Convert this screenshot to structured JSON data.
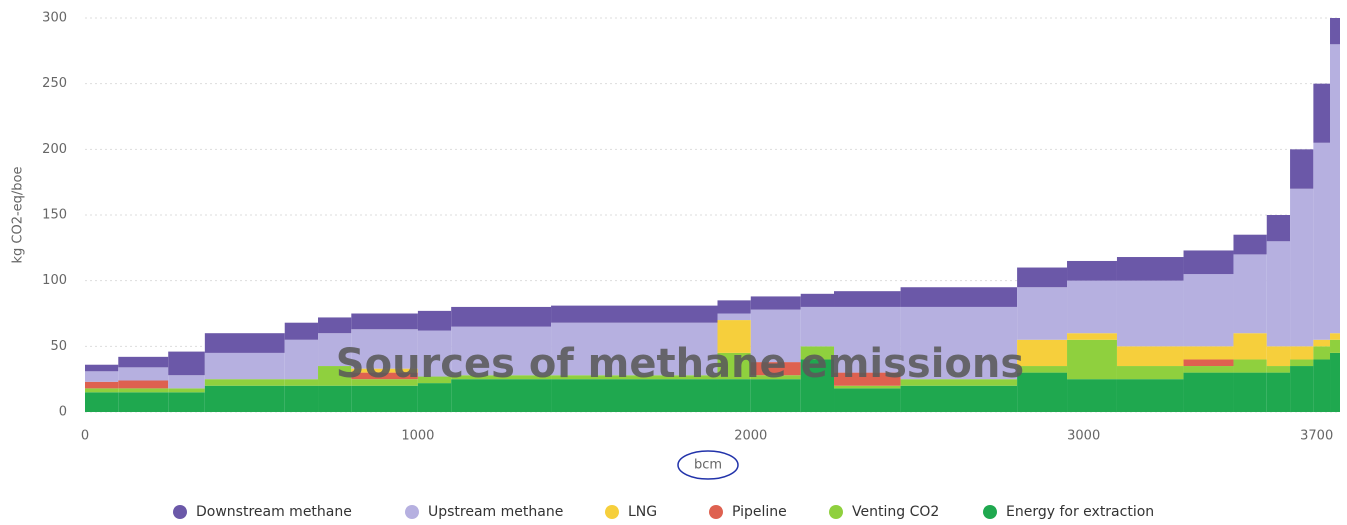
{
  "chart_data": {
    "type": "stacked-step",
    "title": "Sources of methane emissions",
    "x_label": "bcm",
    "y_label": "kg CO2-eq/boe",
    "xlim": [
      0,
      3770
    ],
    "xticks": [
      0,
      1000,
      2000,
      3000,
      3700
    ],
    "ylim": [
      0,
      300
    ],
    "yticks": [
      0,
      50,
      100,
      150,
      200,
      250,
      300
    ],
    "grid": true,
    "legend": "bottom",
    "x": [
      0,
      100,
      250,
      360,
      600,
      700,
      800,
      1000,
      1100,
      1400,
      1900,
      2000,
      2150,
      2250,
      2450,
      2800,
      2950,
      3100,
      3300,
      3450,
      3550,
      3620,
      3690,
      3740
    ],
    "series": [
      {
        "name": "Downstream methane",
        "color": "#6b58a8",
        "values": [
          5,
          8,
          18,
          15,
          13,
          12,
          12,
          15,
          15,
          13,
          10,
          10,
          10,
          12,
          15,
          15,
          15,
          18,
          18,
          15,
          20,
          30,
          45,
          20
        ]
      },
      {
        "name": "Upstream methane",
        "color": "#b6b0e0",
        "values": [
          8,
          10,
          10,
          20,
          30,
          25,
          30,
          35,
          37,
          40,
          5,
          40,
          30,
          50,
          55,
          40,
          40,
          50,
          55,
          60,
          80,
          120,
          150,
          220
        ]
      },
      {
        "name": "LNG",
        "color": "#f6cf3c",
        "values": [
          0,
          0,
          0,
          0,
          0,
          0,
          3,
          0,
          0,
          0,
          25,
          0,
          0,
          0,
          0,
          20,
          5,
          15,
          10,
          20,
          15,
          10,
          5,
          5
        ]
      },
      {
        "name": "Pipeline",
        "color": "#de6150",
        "values": [
          5,
          6,
          0,
          0,
          0,
          0,
          5,
          0,
          0,
          0,
          0,
          10,
          0,
          10,
          0,
          0,
          0,
          0,
          5,
          0,
          0,
          0,
          0,
          0
        ]
      },
      {
        "name": "Venting CO2",
        "color": "#8fd03e",
        "values": [
          3,
          3,
          3,
          5,
          5,
          15,
          5,
          5,
          3,
          3,
          20,
          3,
          10,
          2,
          5,
          5,
          30,
          10,
          5,
          10,
          5,
          5,
          10,
          10
        ]
      },
      {
        "name": "Energy for extraction",
        "color": "#1fa84f",
        "values": [
          15,
          15,
          15,
          20,
          20,
          20,
          20,
          22,
          25,
          25,
          25,
          25,
          40,
          18,
          20,
          30,
          25,
          25,
          30,
          30,
          30,
          35,
          40,
          45
        ]
      }
    ]
  }
}
